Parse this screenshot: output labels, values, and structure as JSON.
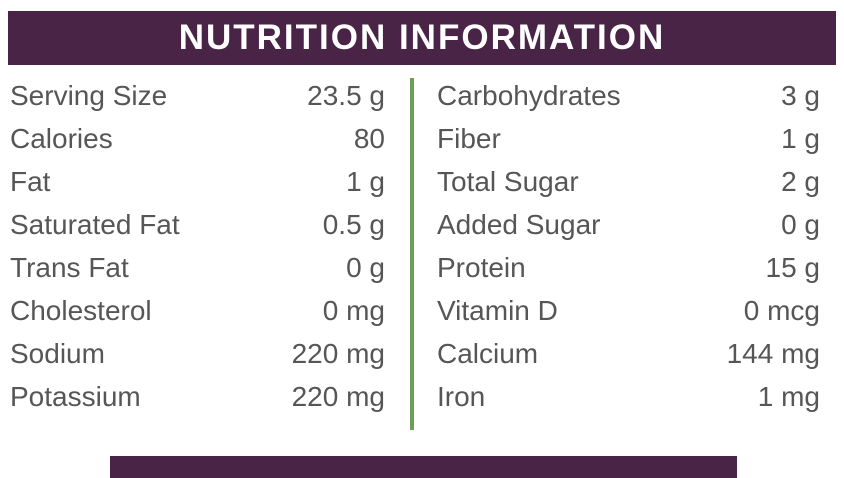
{
  "header": {
    "title": "NUTRITION INFORMATION"
  },
  "colors": {
    "header_bg": "#4A2447",
    "footer_bg": "#4A2447",
    "divider": "#6C9E57",
    "text": "#565658",
    "background": "#FFFFFF"
  },
  "table": {
    "left": [
      {
        "label": "Serving Size",
        "value": "23.5 g"
      },
      {
        "label": "Calories",
        "value": "80"
      },
      {
        "label": "Fat",
        "value": "1 g"
      },
      {
        "label": "Saturated Fat",
        "value": "0.5 g"
      },
      {
        "label": "Trans Fat",
        "value": "0 g"
      },
      {
        "label": "Cholesterol",
        "value": "0 mg"
      },
      {
        "label": "Sodium",
        "value": "220 mg"
      },
      {
        "label": "Potassium",
        "value": "220 mg"
      }
    ],
    "right": [
      {
        "label": "Carbohydrates",
        "value": "3 g"
      },
      {
        "label": "Fiber",
        "value": "1 g"
      },
      {
        "label": "Total Sugar",
        "value": "2 g"
      },
      {
        "label": "Added Sugar",
        "value": "0 g"
      },
      {
        "label": "Protein",
        "value": "15 g"
      },
      {
        "label": "Vitamin D",
        "value": "0 mcg"
      },
      {
        "label": "Calcium",
        "value": "144 mg"
      },
      {
        "label": "Iron",
        "value": "1 mg"
      }
    ]
  }
}
